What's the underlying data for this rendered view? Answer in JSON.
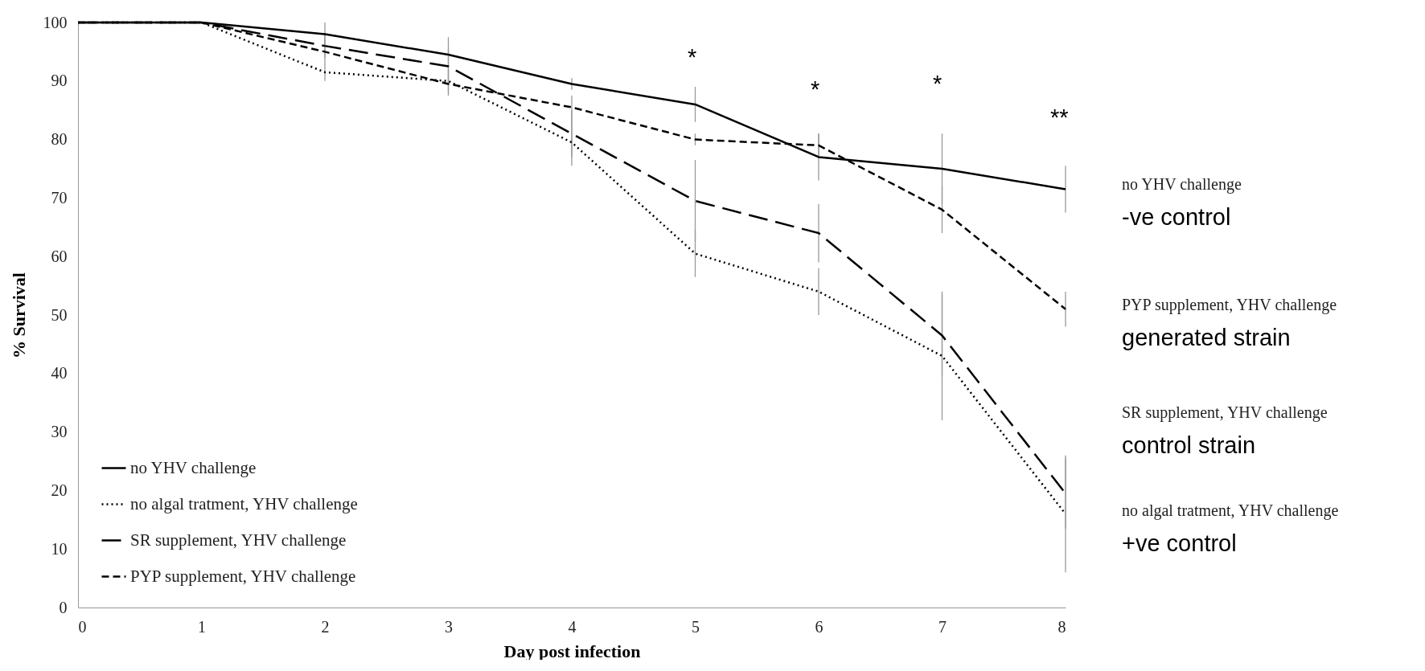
{
  "chart_data": {
    "type": "line",
    "xlabel": "Day post infection",
    "ylabel": "% Survival",
    "x": [
      0,
      1,
      2,
      3,
      4,
      5,
      6,
      7,
      8
    ],
    "xlim": [
      0,
      8
    ],
    "xticks": [
      0,
      1,
      2,
      3,
      4,
      5,
      6,
      7,
      8
    ],
    "ylim": [
      0,
      100
    ],
    "yticks": [
      0,
      10,
      20,
      30,
      40,
      50,
      60,
      70,
      80,
      90,
      100
    ],
    "grid": false,
    "legend": "bottom left",
    "marker": "none",
    "series": [
      {
        "name": "no YHV challenge",
        "color": "#000000",
        "line_style": "solid",
        "values": [
          100,
          100,
          98,
          94.5,
          89.5,
          86,
          77,
          75,
          71.5
        ],
        "errors": [
          null,
          null,
          2,
          3,
          1,
          3,
          4,
          6,
          4
        ]
      },
      {
        "name": "no algal tratment, YHV challenge",
        "color": "#000000",
        "line_style": "dotted",
        "values": [
          100,
          100,
          91.5,
          90,
          79.5,
          60.5,
          54,
          43,
          16
        ],
        "errors": [
          null,
          null,
          1.5,
          2,
          4,
          4,
          4,
          11,
          10
        ]
      },
      {
        "name": "SR supplement, YHV challenge",
        "color": "#000000",
        "line_style": "dashed",
        "values": [
          100,
          100,
          96,
          92.5,
          81,
          69.5,
          64,
          46.5,
          19.5
        ],
        "errors": [
          null,
          null,
          2,
          3,
          4,
          7,
          5,
          7,
          6
        ]
      },
      {
        "name": "PYP supplement, YHV challenge",
        "color": "#000000",
        "line_style": "dashed",
        "values": [
          100,
          100,
          95,
          89.5,
          85.5,
          80,
          79,
          68,
          51
        ],
        "errors": [
          null,
          null,
          2,
          2,
          2,
          1,
          2,
          4,
          3
        ]
      }
    ],
    "annotations": [
      "*",
      "*",
      "*",
      "**",
      "no YHV challenge",
      "-ve control",
      "PYP supplement, YHV challenge",
      "generated strain",
      "SR supplement, YHV challenge",
      "control strain",
      "no algal tratment, YHV challenge",
      "+ve control"
    ]
  }
}
